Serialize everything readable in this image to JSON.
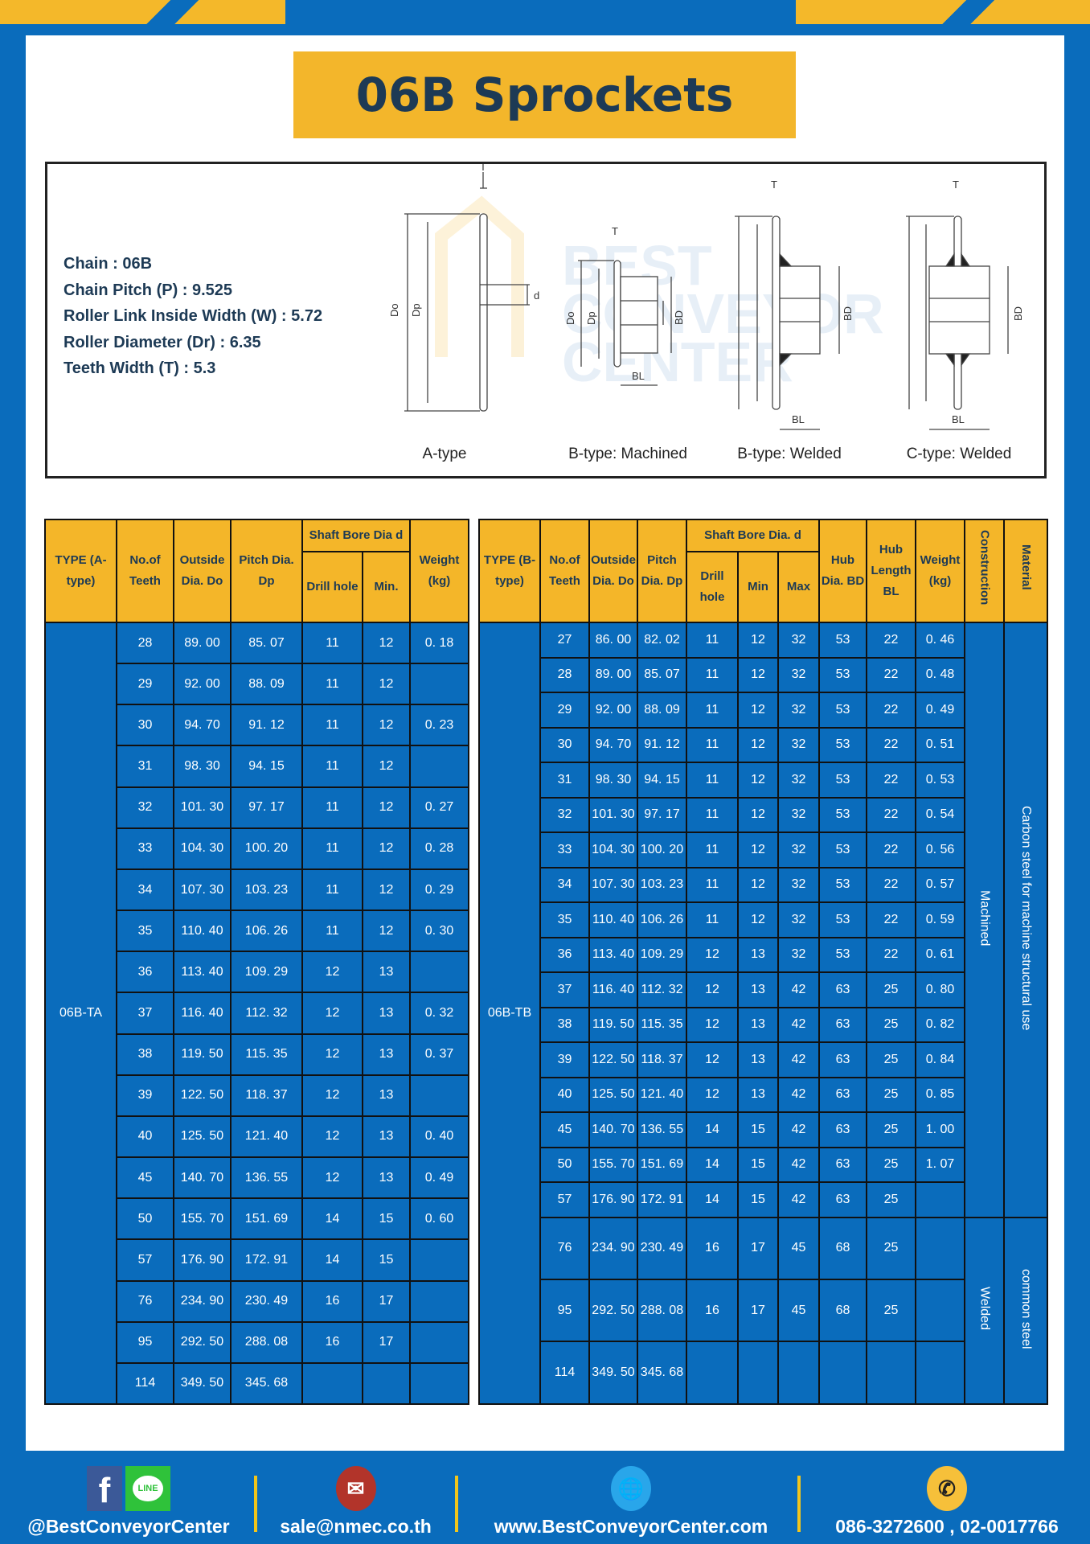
{
  "colors": {
    "background": "#0a6cbc",
    "accent": "#f3b62b",
    "title_text": "#1d3a55"
  },
  "title": "06B Sprockets",
  "specs": [
    "Chain  : 06B",
    "Chain Pitch (P)  :  9.525",
    "Roller Link Inside Width (W)  :  5.72",
    "Roller Diameter (Dr)  : 6.35",
    "Teeth Width (T)  :  5.3"
  ],
  "diagram": {
    "labels": [
      "A-type",
      "B-type: Machined",
      "B-type: Welded",
      "C-type: Welded"
    ],
    "dims": {
      "T": "T",
      "Do": "Do",
      "Dp": "Dp",
      "d": "d",
      "BD": "BD",
      "BL": "BL"
    },
    "watermark": "BEST CONVEYOR CENTER"
  },
  "table_a": {
    "headers": {
      "type": "TYPE (A-type)",
      "teeth": "No.of Teeth",
      "do": "Outside Dia. Do",
      "dp": "Pitch Dia. Dp",
      "bore": "Shaft Bore Dia d",
      "drill": "Drill hole",
      "min": "Min.",
      "weight": "Weight (kg)"
    },
    "type_value": "06B-TA",
    "rows": [
      [
        "28",
        "89. 00",
        "85. 07",
        "11",
        "12",
        "0. 18"
      ],
      [
        "29",
        "92. 00",
        "88. 09",
        "11",
        "12",
        ""
      ],
      [
        "30",
        "94. 70",
        "91. 12",
        "11",
        "12",
        "0. 23"
      ],
      [
        "31",
        "98. 30",
        "94. 15",
        "11",
        "12",
        ""
      ],
      [
        "32",
        "101. 30",
        "97. 17",
        "11",
        "12",
        "0. 27"
      ],
      [
        "33",
        "104. 30",
        "100. 20",
        "11",
        "12",
        "0. 28"
      ],
      [
        "34",
        "107. 30",
        "103. 23",
        "11",
        "12",
        "0. 29"
      ],
      [
        "35",
        "110. 40",
        "106. 26",
        "11",
        "12",
        "0. 30"
      ],
      [
        "36",
        "113. 40",
        "109. 29",
        "12",
        "13",
        ""
      ],
      [
        "37",
        "116. 40",
        "112. 32",
        "12",
        "13",
        "0. 32"
      ],
      [
        "38",
        "119. 50",
        "115. 35",
        "12",
        "13",
        "0. 37"
      ],
      [
        "39",
        "122. 50",
        "118. 37",
        "12",
        "13",
        ""
      ],
      [
        "40",
        "125. 50",
        "121. 40",
        "12",
        "13",
        "0. 40"
      ],
      [
        "45",
        "140. 70",
        "136. 55",
        "12",
        "13",
        "0. 49"
      ],
      [
        "50",
        "155. 70",
        "151. 69",
        "14",
        "15",
        "0. 60"
      ],
      [
        "57",
        "176. 90",
        "172. 91",
        "14",
        "15",
        ""
      ],
      [
        "76",
        "234. 90",
        "230. 49",
        "16",
        "17",
        ""
      ],
      [
        "95",
        "292. 50",
        "288. 08",
        "16",
        "17",
        ""
      ],
      [
        "114",
        "349. 50",
        "345. 68",
        "",
        "",
        ""
      ]
    ]
  },
  "table_b": {
    "headers": {
      "type": "TYPE (B-type)",
      "teeth": "No.of Teeth",
      "do": "Outside Dia. Do",
      "dp": "Pitch Dia. Dp",
      "bore": "Shaft Bore Dia. d",
      "drill": "Drill hole",
      "min": "Min",
      "max": "Max",
      "hubdia": "Hub Dia. BD",
      "hublen": "Hub Length BL",
      "weight": "Weight (kg)",
      "construction": "Construction",
      "material": "Material"
    },
    "type_value": "06B-TB",
    "construction_groups": [
      {
        "label": "Machined",
        "rows": 17
      },
      {
        "label": "Welded",
        "rows": 3
      }
    ],
    "material_groups": [
      {
        "label": "Carbon steel for machine structural use",
        "rows": 17
      },
      {
        "label": "common steel",
        "rows": 3
      }
    ],
    "rows": [
      [
        "27",
        "86. 00",
        "82. 02",
        "11",
        "12",
        "32",
        "53",
        "22",
        "0. 46"
      ],
      [
        "28",
        "89. 00",
        "85. 07",
        "11",
        "12",
        "32",
        "53",
        "22",
        "0. 48"
      ],
      [
        "29",
        "92. 00",
        "88. 09",
        "11",
        "12",
        "32",
        "53",
        "22",
        "0. 49"
      ],
      [
        "30",
        "94. 70",
        "91. 12",
        "11",
        "12",
        "32",
        "53",
        "22",
        "0. 51"
      ],
      [
        "31",
        "98. 30",
        "94. 15",
        "11",
        "12",
        "32",
        "53",
        "22",
        "0. 53"
      ],
      [
        "32",
        "101. 30",
        "97. 17",
        "11",
        "12",
        "32",
        "53",
        "22",
        "0. 54"
      ],
      [
        "33",
        "104. 30",
        "100. 20",
        "11",
        "12",
        "32",
        "53",
        "22",
        "0. 56"
      ],
      [
        "34",
        "107. 30",
        "103. 23",
        "11",
        "12",
        "32",
        "53",
        "22",
        "0. 57"
      ],
      [
        "35",
        "110. 40",
        "106. 26",
        "11",
        "12",
        "32",
        "53",
        "22",
        "0. 59"
      ],
      [
        "36",
        "113. 40",
        "109. 29",
        "12",
        "13",
        "32",
        "53",
        "22",
        "0. 61"
      ],
      [
        "37",
        "116. 40",
        "112. 32",
        "12",
        "13",
        "42",
        "63",
        "25",
        "0. 80"
      ],
      [
        "38",
        "119. 50",
        "115. 35",
        "12",
        "13",
        "42",
        "63",
        "25",
        "0. 82"
      ],
      [
        "39",
        "122. 50",
        "118. 37",
        "12",
        "13",
        "42",
        "63",
        "25",
        "0. 84"
      ],
      [
        "40",
        "125. 50",
        "121. 40",
        "12",
        "13",
        "42",
        "63",
        "25",
        "0. 85"
      ],
      [
        "45",
        "140. 70",
        "136. 55",
        "14",
        "15",
        "42",
        "63",
        "25",
        "1. 00"
      ],
      [
        "50",
        "155. 70",
        "151. 69",
        "14",
        "15",
        "42",
        "63",
        "25",
        "1. 07"
      ],
      [
        "57",
        "176. 90",
        "172. 91",
        "14",
        "15",
        "42",
        "63",
        "25",
        ""
      ],
      [
        "76",
        "234. 90",
        "230. 49",
        "16",
        "17",
        "45",
        "68",
        "25",
        ""
      ],
      [
        "95",
        "292. 50",
        "288. 08",
        "16",
        "17",
        "45",
        "68",
        "25",
        ""
      ],
      [
        "114",
        "349. 50",
        "345. 68",
        "",
        "",
        "",
        "",
        "",
        ""
      ]
    ]
  },
  "footer": {
    "social": "@BestConveyorCenter",
    "email": "sale@nmec.co.th",
    "website": "www.BestConveyorCenter.com",
    "phone": "086-3272600 , 02-0017766",
    "icons": [
      "facebook-icon",
      "line-icon",
      "email-icon",
      "globe-icon",
      "phone-icon"
    ],
    "line_label": "LINE"
  }
}
